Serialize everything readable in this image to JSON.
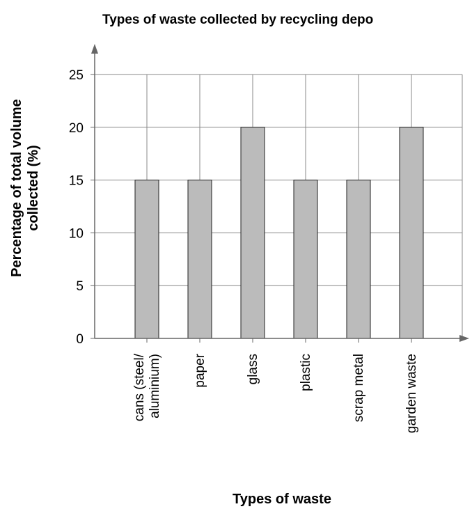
{
  "chart_data": {
    "type": "bar",
    "title": "Types of waste collected by recycling depo",
    "xlabel": "Types of waste",
    "ylabel_lines": [
      "Percentage of total volume",
      "collected (%)"
    ],
    "categories": [
      [
        "cans (steel/",
        "aluminium)"
      ],
      [
        "paper"
      ],
      [
        "glass"
      ],
      [
        "plastic"
      ],
      [
        "scrap metal"
      ],
      [
        "garden waste"
      ]
    ],
    "values": [
      15,
      15,
      20,
      15,
      15,
      20
    ],
    "ylim": [
      0,
      25
    ],
    "yticks": [
      0,
      5,
      10,
      15,
      20,
      25
    ],
    "grid": true,
    "bar_color": "#bbbbbb",
    "grid_color": "#888888",
    "axis_color": "#666666"
  }
}
